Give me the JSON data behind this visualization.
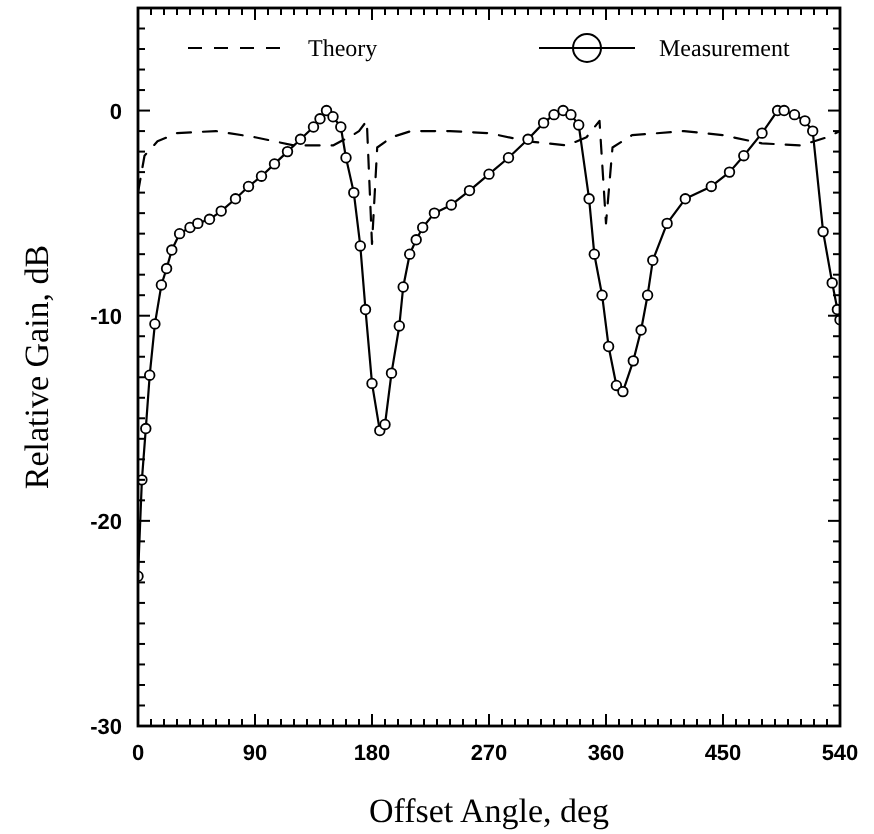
{
  "chart_data": {
    "type": "line",
    "xlabel": "Offset Angle, deg",
    "ylabel": "Relative Gain, dB",
    "xlim": [
      0,
      540
    ],
    "ylim": [
      -30,
      5
    ],
    "xticks": [
      0,
      {
        "value": 10,
        "label": null
      },
      {
        "value": 20,
        "label": null
      },
      {
        "value": 30,
        "label": null
      },
      {
        "value": 40,
        "label": null
      },
      {
        "value": 50,
        "label": null
      },
      {
        "value": 60,
        "label": null
      },
      {
        "value": 70,
        "label": null
      },
      {
        "value": 80,
        "label": null
      },
      90,
      {
        "value": 100,
        "label": null
      },
      {
        "value": 110,
        "label": null
      },
      {
        "value": 120,
        "label": null
      },
      {
        "value": 130,
        "label": null
      },
      {
        "value": 140,
        "label": null
      },
      {
        "value": 150,
        "label": null
      },
      {
        "value": 160,
        "label": null
      },
      {
        "value": 170,
        "label": null
      },
      180,
      {
        "value": 190,
        "label": null
      },
      {
        "value": 200,
        "label": null
      },
      {
        "value": 210,
        "label": null
      },
      {
        "value": 220,
        "label": null
      },
      {
        "value": 230,
        "label": null
      },
      {
        "value": 240,
        "label": null
      },
      {
        "value": 250,
        "label": null
      },
      {
        "value": 260,
        "label": null
      },
      270,
      {
        "value": 280,
        "label": null
      },
      {
        "value": 290,
        "label": null
      },
      {
        "value": 300,
        "label": null
      },
      {
        "value": 310,
        "label": null
      },
      {
        "value": 320,
        "label": null
      },
      {
        "value": 330,
        "label": null
      },
      {
        "value": 340,
        "label": null
      },
      {
        "value": 350,
        "label": null
      },
      360,
      {
        "value": 370,
        "label": null
      },
      {
        "value": 380,
        "label": null
      },
      {
        "value": 390,
        "label": null
      },
      {
        "value": 400,
        "label": null
      },
      {
        "value": 410,
        "label": null
      },
      {
        "value": 420,
        "label": null
      },
      {
        "value": 430,
        "label": null
      },
      {
        "value": 440,
        "label": null
      },
      450,
      {
        "value": 460,
        "label": null
      },
      {
        "value": 470,
        "label": null
      },
      {
        "value": 480,
        "label": null
      },
      {
        "value": 490,
        "label": null
      },
      {
        "value": 500,
        "label": null
      },
      {
        "value": 510,
        "label": null
      },
      {
        "value": 520,
        "label": null
      },
      {
        "value": 530,
        "label": null
      },
      540
    ],
    "yticks": [
      -30,
      {
        "value": -29,
        "label": null
      },
      {
        "value": -28,
        "label": null
      },
      {
        "value": -27,
        "label": null
      },
      {
        "value": -26,
        "label": null
      },
      {
        "value": -25,
        "label": null
      },
      {
        "value": -24,
        "label": null
      },
      {
        "value": -23,
        "label": null
      },
      {
        "value": -22,
        "label": null
      },
      {
        "value": -21,
        "label": null
      },
      -20,
      {
        "value": -19,
        "label": null
      },
      {
        "value": -18,
        "label": null
      },
      {
        "value": -17,
        "label": null
      },
      {
        "value": -16,
        "label": null
      },
      {
        "value": -15,
        "label": null
      },
      {
        "value": -14,
        "label": null
      },
      {
        "value": -13,
        "label": null
      },
      {
        "value": -12,
        "label": null
      },
      {
        "value": -11,
        "label": null
      },
      -10,
      {
        "value": -9,
        "label": null
      },
      {
        "value": -8,
        "label": null
      },
      {
        "value": -7,
        "label": null
      },
      {
        "value": -6,
        "label": null
      },
      {
        "value": -5,
        "label": null
      },
      {
        "value": -4,
        "label": null
      },
      {
        "value": -3,
        "label": null
      },
      {
        "value": -2,
        "label": null
      },
      {
        "value": -1,
        "label": null
      },
      0,
      {
        "value": 1,
        "label": null
      },
      {
        "value": 2,
        "label": null
      },
      {
        "value": 3,
        "label": null
      },
      {
        "value": 4,
        "label": null
      },
      {
        "value": 5,
        "label": null
      }
    ],
    "legend": "top",
    "grid": false,
    "series": [
      {
        "name": "Theory",
        "color": "#000000",
        "line_style": "dashed",
        "marker": "none",
        "x": [
          0,
          5,
          15,
          30,
          60,
          90,
          120,
          150,
          165,
          170,
          176,
          180,
          184,
          195,
          210,
          240,
          270,
          300,
          330,
          345,
          355,
          360,
          365,
          380,
          420,
          450,
          480,
          510,
          530,
          540
        ],
        "values": [
          -4,
          -2.2,
          -1.5,
          -1.1,
          -1.0,
          -1.3,
          -1.7,
          -1.7,
          -1.2,
          -1.0,
          -0.5,
          -6.5,
          -1.8,
          -1.3,
          -1.0,
          -1.0,
          -1.1,
          -1.5,
          -1.7,
          -1.3,
          -0.5,
          -5.5,
          -1.8,
          -1.2,
          -1.0,
          -1.2,
          -1.6,
          -1.7,
          -1.3,
          -1.0
        ]
      },
      {
        "name": "Measurement",
        "color": "#000000",
        "line_style": "solid",
        "marker": "circle",
        "x": [
          0,
          3,
          6,
          9,
          13,
          18,
          22,
          26,
          32,
          40,
          46,
          55,
          64,
          75,
          85,
          95,
          105,
          115,
          125,
          135,
          140,
          145,
          150,
          156,
          160,
          166,
          171,
          175,
          180,
          186,
          190,
          195,
          201,
          204,
          209,
          214,
          219,
          228,
          241,
          255,
          270,
          285,
          300,
          312,
          320,
          327,
          333,
          339,
          347,
          351,
          357,
          362,
          368,
          373,
          381,
          387,
          392,
          396,
          407,
          421,
          441,
          455,
          466,
          480,
          492,
          497,
          505,
          513,
          519,
          527,
          534,
          538,
          540
        ],
        "values": [
          -22.7,
          -18,
          -15.5,
          -12.9,
          -10.4,
          -8.5,
          -7.7,
          -6.8,
          -6.0,
          -5.7,
          -5.5,
          -5.3,
          -4.9,
          -4.3,
          -3.7,
          -3.2,
          -2.6,
          -2.0,
          -1.4,
          -0.8,
          -0.4,
          0,
          -0.3,
          -0.8,
          -2.3,
          -4,
          -6.6,
          -9.7,
          -13.3,
          -15.6,
          -15.3,
          -12.8,
          -10.5,
          -8.6,
          -7,
          -6.3,
          -5.7,
          -5.0,
          -4.6,
          -3.9,
          -3.1,
          -2.3,
          -1.4,
          -0.6,
          -0.2,
          0,
          -0.2,
          -0.7,
          -4.3,
          -7,
          -9,
          -11.5,
          -13.4,
          -13.7,
          -12.2,
          -10.7,
          -9,
          -7.3,
          -5.5,
          -4.3,
          -3.7,
          -3.0,
          -2.2,
          -1.1,
          0,
          0,
          -0.2,
          -0.5,
          -1,
          -5.9,
          -8.4,
          -9.7,
          -10.2
        ]
      }
    ]
  }
}
